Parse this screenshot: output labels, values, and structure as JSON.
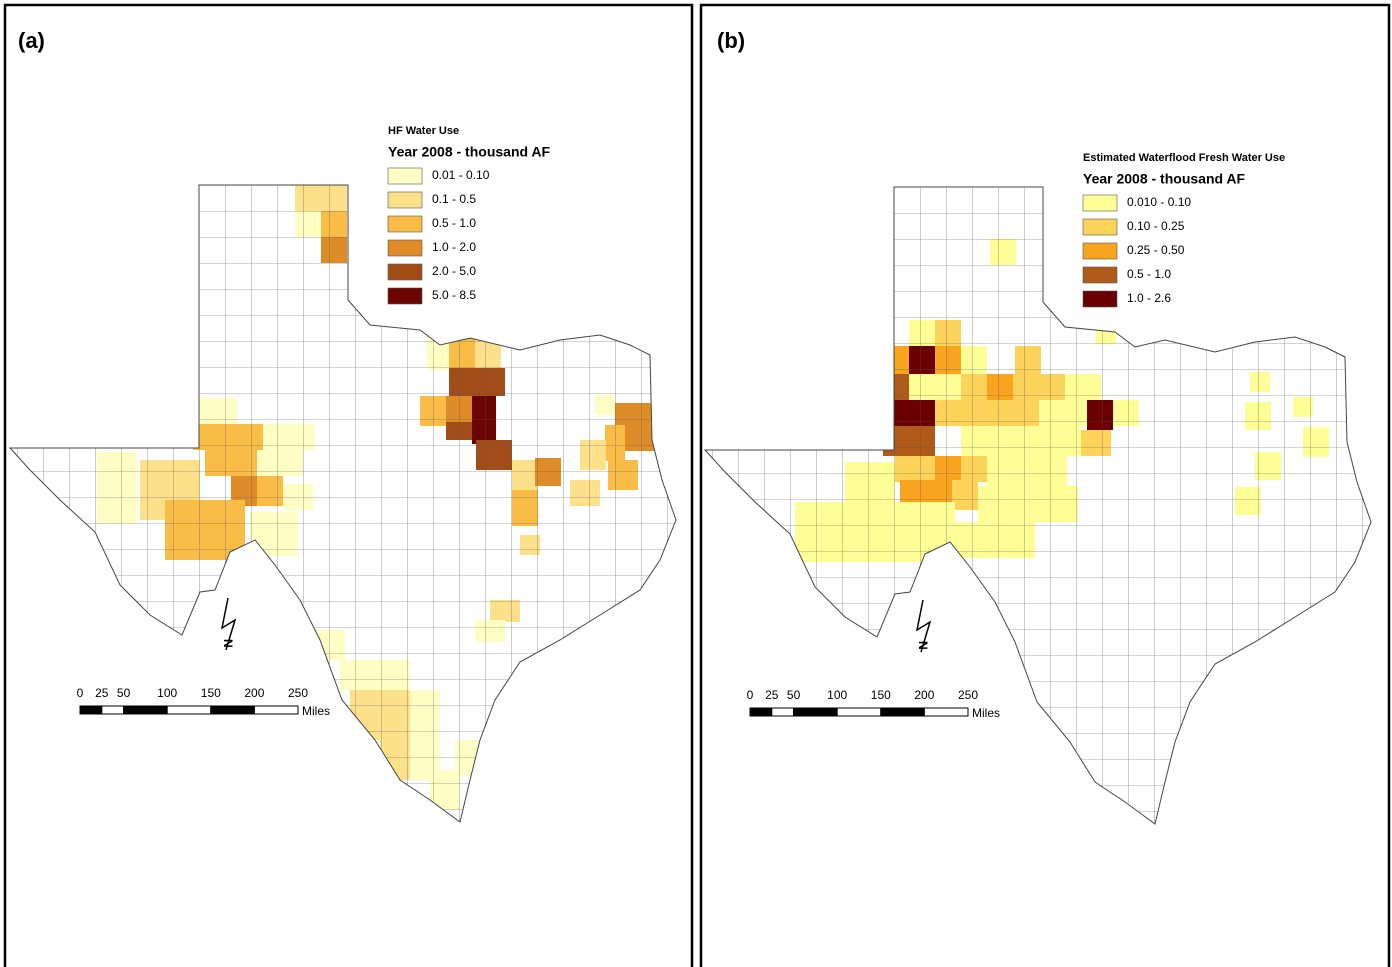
{
  "panels": [
    {
      "label": "(a)",
      "legend": {
        "title": "HF Water Use",
        "subtitle": "Year 2008 - thousand AF",
        "classes": [
          {
            "label": "0.01 - 0.10",
            "color": "#fefec4"
          },
          {
            "label": "0.1 - 0.5",
            "color": "#fde18a"
          },
          {
            "label": "0.5 - 1.0",
            "color": "#f9bc47"
          },
          {
            "label": "1.0 - 2.0",
            "color": "#de8c28"
          },
          {
            "label": "2.0 - 5.0",
            "color": "#a24d18"
          },
          {
            "label": "5.0 - 8.5",
            "color": "#6b0500"
          }
        ]
      }
    },
    {
      "label": "(b)",
      "legend": {
        "title": "Estimated Waterflood Fresh Water Use",
        "subtitle": "Year 2008 - thousand AF",
        "classes": [
          {
            "label": "0.010 - 0.10",
            "color": "#fefe96"
          },
          {
            "label": "0.10 - 0.25",
            "color": "#fdd35a"
          },
          {
            "label": "0.25 - 0.50",
            "color": "#f9a41f"
          },
          {
            "label": "0.5 - 1.0",
            "color": "#b05a1a"
          },
          {
            "label": "1.0 - 2.6",
            "color": "#6b0000"
          }
        ]
      }
    }
  ],
  "scale_bar": {
    "ticks": [
      0,
      25,
      50,
      100,
      150,
      200,
      250
    ],
    "unit": "Miles"
  },
  "north_arrow": "N"
}
